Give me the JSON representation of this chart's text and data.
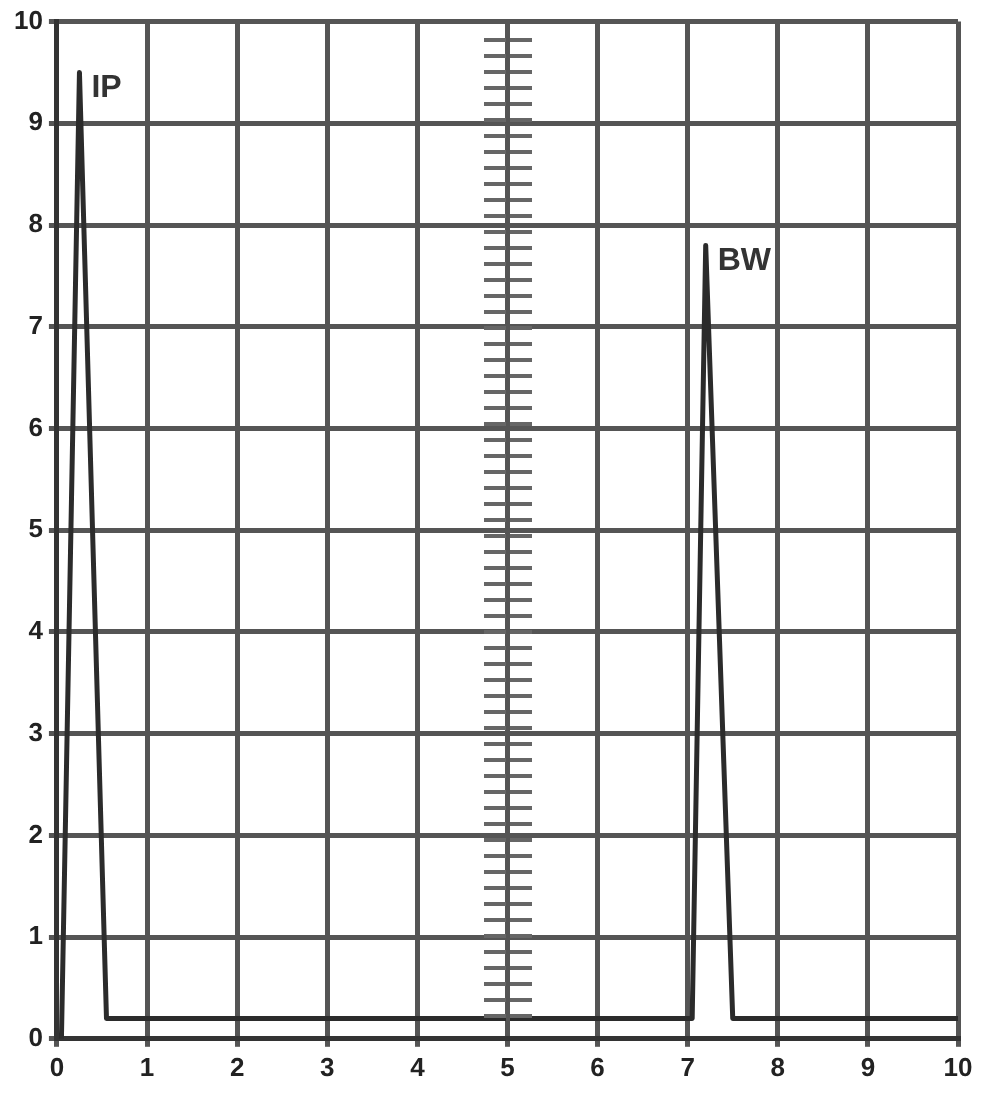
{
  "chart_data": {
    "type": "line",
    "x": [
      0.05,
      0.25,
      0.55,
      7.05,
      7.2,
      7.5,
      10
    ],
    "series": [
      {
        "color": "#2b2b2b",
        "values": [
          0,
          9.5,
          0.2,
          0.2,
          7.8,
          0.2,
          0.2
        ]
      }
    ],
    "xlim": [
      0,
      10
    ],
    "ylim": [
      0,
      10
    ],
    "xticks": [
      0,
      1,
      2,
      3,
      4,
      5,
      6,
      7,
      8,
      9,
      10
    ],
    "yticks": [
      0,
      1,
      2,
      3,
      4,
      5,
      6,
      7,
      8,
      9,
      10
    ],
    "grid": true,
    "legend": false,
    "marker": "none",
    "line_style": "solid",
    "annotations": [
      {
        "text": "IP",
        "x": 0.25,
        "y": 9.5
      },
      {
        "text": "BW",
        "x": 7.2,
        "y": 7.8
      }
    ]
  }
}
